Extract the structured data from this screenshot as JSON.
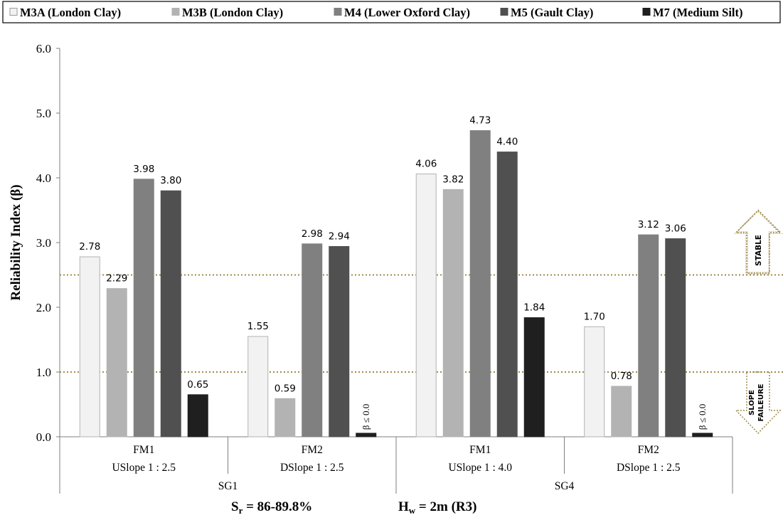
{
  "chart_data": {
    "type": "bar",
    "ylabel": "Reliability Index (β)",
    "ylim": [
      0,
      6
    ],
    "yticks": [
      "0.0",
      "1.0",
      "2.0",
      "3.0",
      "4.0",
      "5.0",
      "6.0"
    ],
    "grid": false,
    "legend_position": "top",
    "series": [
      {
        "name": "M3A (London Clay)",
        "color": "#f2f2f2",
        "stroke": "#b3b3b3",
        "values": [
          2.78,
          1.55,
          4.06,
          1.7
        ]
      },
      {
        "name": "M3B (London Clay)",
        "color": "#b3b3b3",
        "stroke": "#b3b3b3",
        "values": [
          2.29,
          0.59,
          3.82,
          0.78
        ]
      },
      {
        "name": "M4 (Lower Oxford Clay)",
        "color": "#808080",
        "stroke": "#808080",
        "values": [
          3.98,
          2.98,
          4.73,
          3.12
        ]
      },
      {
        "name": "M5 (Gault Clay)",
        "color": "#505050",
        "stroke": "#505050",
        "values": [
          3.8,
          2.94,
          4.4,
          3.06
        ]
      },
      {
        "name": "M7 (Medium Silt)",
        "color": "#1f1f1f",
        "stroke": "#1f1f1f",
        "values": [
          0.65,
          0.0,
          1.84,
          0.0
        ]
      }
    ],
    "data_labels": [
      [
        "2.78",
        "1.55",
        "4.06",
        "1.70"
      ],
      [
        "2.29",
        "0.59",
        "3.82",
        "0.78"
      ],
      [
        "3.98",
        "2.98",
        "4.73",
        "3.12"
      ],
      [
        "3.80",
        "2.94",
        "4.40",
        "3.06"
      ],
      [
        "0.65",
        "β ≤ 0.0",
        "1.84",
        "β ≤ 0.0"
      ]
    ],
    "categories": [
      {
        "mode": "FM1",
        "slope": "USlope 1 : 2.5"
      },
      {
        "mode": "FM2",
        "slope": "DSlope 1 : 2.5"
      },
      {
        "mode": "FM1",
        "slope": "USlope 1 : 4.0"
      },
      {
        "mode": "FM2",
        "slope": "DSlope 1 : 2.5"
      }
    ],
    "groups": [
      "SG1",
      "SG4"
    ],
    "thresholds": [
      {
        "value": 2.5,
        "color": "#9c8b4a"
      },
      {
        "value": 1.0,
        "color": "#9c8b4a"
      }
    ],
    "annotations": {
      "stable": "STABLE",
      "failure_line1": "SLOPE",
      "failure_line2": "FAILEURE"
    },
    "footer": {
      "sr_symbol": "S",
      "sr_sub": "r",
      "sr_value": " = 86-89.8%",
      "hw_symbol": "H",
      "hw_sub": "w",
      "hw_value": " = 2m (R3)"
    }
  }
}
